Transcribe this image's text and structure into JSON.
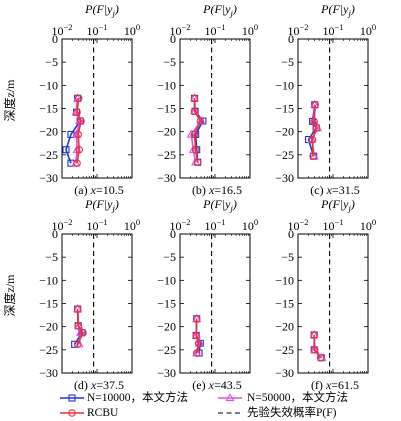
{
  "top_axis_label": "P(F|y_j)",
  "left_axis_label": "深度z/m",
  "top_ticks": [
    "10^-2",
    "10^-1",
    "10^0"
  ],
  "y_ticks": [
    "0",
    "-5",
    "-10",
    "-15",
    "-20",
    "-25",
    "-30"
  ],
  "legend": {
    "blue": "N=10000，本文方法",
    "magenta": "N=50000，本文方法",
    "red": "RCBU",
    "prior": "先验失效概率P(F)"
  },
  "colors": {
    "blue": "#1f35d6",
    "magenta": "#e34fdc",
    "red": "#e8313a",
    "dashed": "#000000"
  },
  "chart_data": [
    {
      "type": "line",
      "panel_label": "(a) x=10.5",
      "x_scale": "log",
      "xlim": [
        0.01,
        1
      ],
      "ylim": [
        -30,
        0
      ],
      "prior_pf": 0.08,
      "series": [
        {
          "name": "N=10000，本文方法",
          "color": "#1f35d6",
          "marker": "square",
          "points": [
            [
              0.028,
              -12.8
            ],
            [
              0.026,
              -15.8
            ],
            [
              0.033,
              -17.7
            ],
            [
              0.018,
              -20.6
            ],
            [
              0.013,
              -23.9
            ],
            [
              0.018,
              -26.8
            ]
          ]
        },
        {
          "name": "N=50000，本文方法",
          "color": "#e34fdc",
          "marker": "triangle",
          "points": [
            [
              0.028,
              -12.8
            ],
            [
              0.025,
              -15.8
            ],
            [
              0.032,
              -17.7
            ],
            [
              0.026,
              -20.6
            ],
            [
              0.027,
              -23.9
            ],
            [
              0.025,
              -26.8
            ]
          ]
        },
        {
          "name": "RCBU",
          "color": "#e8313a",
          "marker": "circle",
          "points": [
            [
              0.03,
              -12.8
            ],
            [
              0.027,
              -15.8
            ],
            [
              0.035,
              -17.7
            ],
            [
              0.029,
              -20.6
            ],
            [
              0.031,
              -23.9
            ],
            [
              0.027,
              -26.8
            ]
          ]
        }
      ]
    },
    {
      "type": "line",
      "panel_label": "(b) x=16.5",
      "x_scale": "log",
      "xlim": [
        0.01,
        1
      ],
      "ylim": [
        -30,
        0
      ],
      "prior_pf": 0.08,
      "series": [
        {
          "name": "N=10000，本文方法",
          "color": "#1f35d6",
          "marker": "square",
          "points": [
            [
              0.026,
              -12.8
            ],
            [
              0.027,
              -15.6
            ],
            [
              0.045,
              -17.7
            ],
            [
              0.028,
              -20.6
            ],
            [
              0.03,
              -23.9
            ],
            [
              0.032,
              -26.6
            ]
          ]
        },
        {
          "name": "N=50000，本文方法",
          "color": "#e34fdc",
          "marker": "triangle",
          "points": [
            [
              0.026,
              -12.8
            ],
            [
              0.026,
              -15.6
            ],
            [
              0.04,
              -17.7
            ],
            [
              0.021,
              -20.6
            ],
            [
              0.024,
              -23.9
            ],
            [
              0.028,
              -26.6
            ]
          ]
        },
        {
          "name": "RCBU",
          "color": "#e8313a",
          "marker": "circle",
          "points": [
            [
              0.026,
              -12.8
            ],
            [
              0.026,
              -15.6
            ],
            [
              0.038,
              -17.7
            ],
            [
              0.026,
              -20.6
            ],
            [
              0.028,
              -23.9
            ],
            [
              0.032,
              -26.6
            ]
          ]
        }
      ]
    },
    {
      "type": "line",
      "panel_label": "(c) x=31.5",
      "x_scale": "log",
      "xlim": [
        0.01,
        1
      ],
      "ylim": [
        -30,
        0
      ],
      "prior_pf": 0.08,
      "series": [
        {
          "name": "N=10000，本文方法",
          "color": "#1f35d6",
          "marker": "square",
          "points": [
            [
              0.03,
              -14.2
            ],
            [
              0.026,
              -17.8
            ],
            [
              0.033,
              -19.2
            ],
            [
              0.02,
              -21.7
            ],
            [
              0.028,
              -25.3
            ]
          ]
        },
        {
          "name": "N=50000，本文方法",
          "color": "#e34fdc",
          "marker": "triangle",
          "points": [
            [
              0.03,
              -14.2
            ],
            [
              0.028,
              -17.8
            ],
            [
              0.036,
              -19.2
            ],
            [
              0.025,
              -21.7
            ],
            [
              0.029,
              -25.3
            ]
          ]
        },
        {
          "name": "RCBU",
          "color": "#e8313a",
          "marker": "circle",
          "points": [
            [
              0.031,
              -14.2
            ],
            [
              0.029,
              -17.8
            ],
            [
              0.034,
              -19.2
            ],
            [
              0.026,
              -21.7
            ],
            [
              0.027,
              -25.3
            ]
          ]
        }
      ]
    },
    {
      "type": "line",
      "panel_label": "(d) x=37.5",
      "x_scale": "log",
      "xlim": [
        0.01,
        1
      ],
      "ylim": [
        -30,
        0
      ],
      "prior_pf": 0.08,
      "series": [
        {
          "name": "N=10000，本文方法",
          "color": "#1f35d6",
          "marker": "square",
          "points": [
            [
              0.028,
              -16.2
            ],
            [
              0.029,
              -19.8
            ],
            [
              0.037,
              -21.3
            ],
            [
              0.023,
              -23.8
            ]
          ]
        },
        {
          "name": "N=50000，本文方法",
          "color": "#e34fdc",
          "marker": "triangle",
          "points": [
            [
              0.028,
              -16.2
            ],
            [
              0.03,
              -19.8
            ],
            [
              0.034,
              -21.3
            ],
            [
              0.031,
              -23.8
            ]
          ]
        },
        {
          "name": "RCBU",
          "color": "#e8313a",
          "marker": "circle",
          "points": [
            [
              0.028,
              -16.2
            ],
            [
              0.029,
              -19.8
            ],
            [
              0.04,
              -21.3
            ],
            [
              0.028,
              -23.8
            ]
          ]
        }
      ]
    },
    {
      "type": "line",
      "panel_label": "(e) x=43.5",
      "x_scale": "log",
      "xlim": [
        0.01,
        1
      ],
      "ylim": [
        -30,
        0
      ],
      "prior_pf": 0.08,
      "series": [
        {
          "name": "N=10000，本文方法",
          "color": "#1f35d6",
          "marker": "square",
          "points": [
            [
              0.03,
              -18.3
            ],
            [
              0.029,
              -21.9
            ],
            [
              0.038,
              -23.6
            ],
            [
              0.035,
              -25.7
            ]
          ]
        },
        {
          "name": "N=50000，本文方法",
          "color": "#e34fdc",
          "marker": "triangle",
          "points": [
            [
              0.03,
              -18.3
            ],
            [
              0.029,
              -21.9
            ],
            [
              0.036,
              -23.6
            ],
            [
              0.03,
              -25.7
            ]
          ]
        },
        {
          "name": "RCBU",
          "color": "#e8313a",
          "marker": "circle",
          "points": [
            [
              0.03,
              -18.3
            ],
            [
              0.029,
              -21.9
            ],
            [
              0.034,
              -23.6
            ],
            [
              0.03,
              -25.7
            ]
          ]
        }
      ]
    },
    {
      "type": "line",
      "panel_label": "(f) x=61.5",
      "x_scale": "log",
      "xlim": [
        0.01,
        1
      ],
      "ylim": [
        -30,
        0
      ],
      "prior_pf": 0.08,
      "series": [
        {
          "name": "N=10000，本文方法",
          "color": "#1f35d6",
          "marker": "square",
          "points": [
            [
              0.029,
              -21.8
            ],
            [
              0.029,
              -25.0
            ],
            [
              0.046,
              -26.7
            ]
          ]
        },
        {
          "name": "N=50000，本文方法",
          "color": "#e34fdc",
          "marker": "triangle",
          "points": [
            [
              0.029,
              -21.8
            ],
            [
              0.03,
              -25.0
            ],
            [
              0.048,
              -26.7
            ]
          ]
        },
        {
          "name": "RCBU",
          "color": "#e8313a",
          "marker": "circle",
          "points": [
            [
              0.029,
              -21.8
            ],
            [
              0.03,
              -25.0
            ],
            [
              0.044,
              -26.7
            ]
          ]
        }
      ]
    }
  ]
}
